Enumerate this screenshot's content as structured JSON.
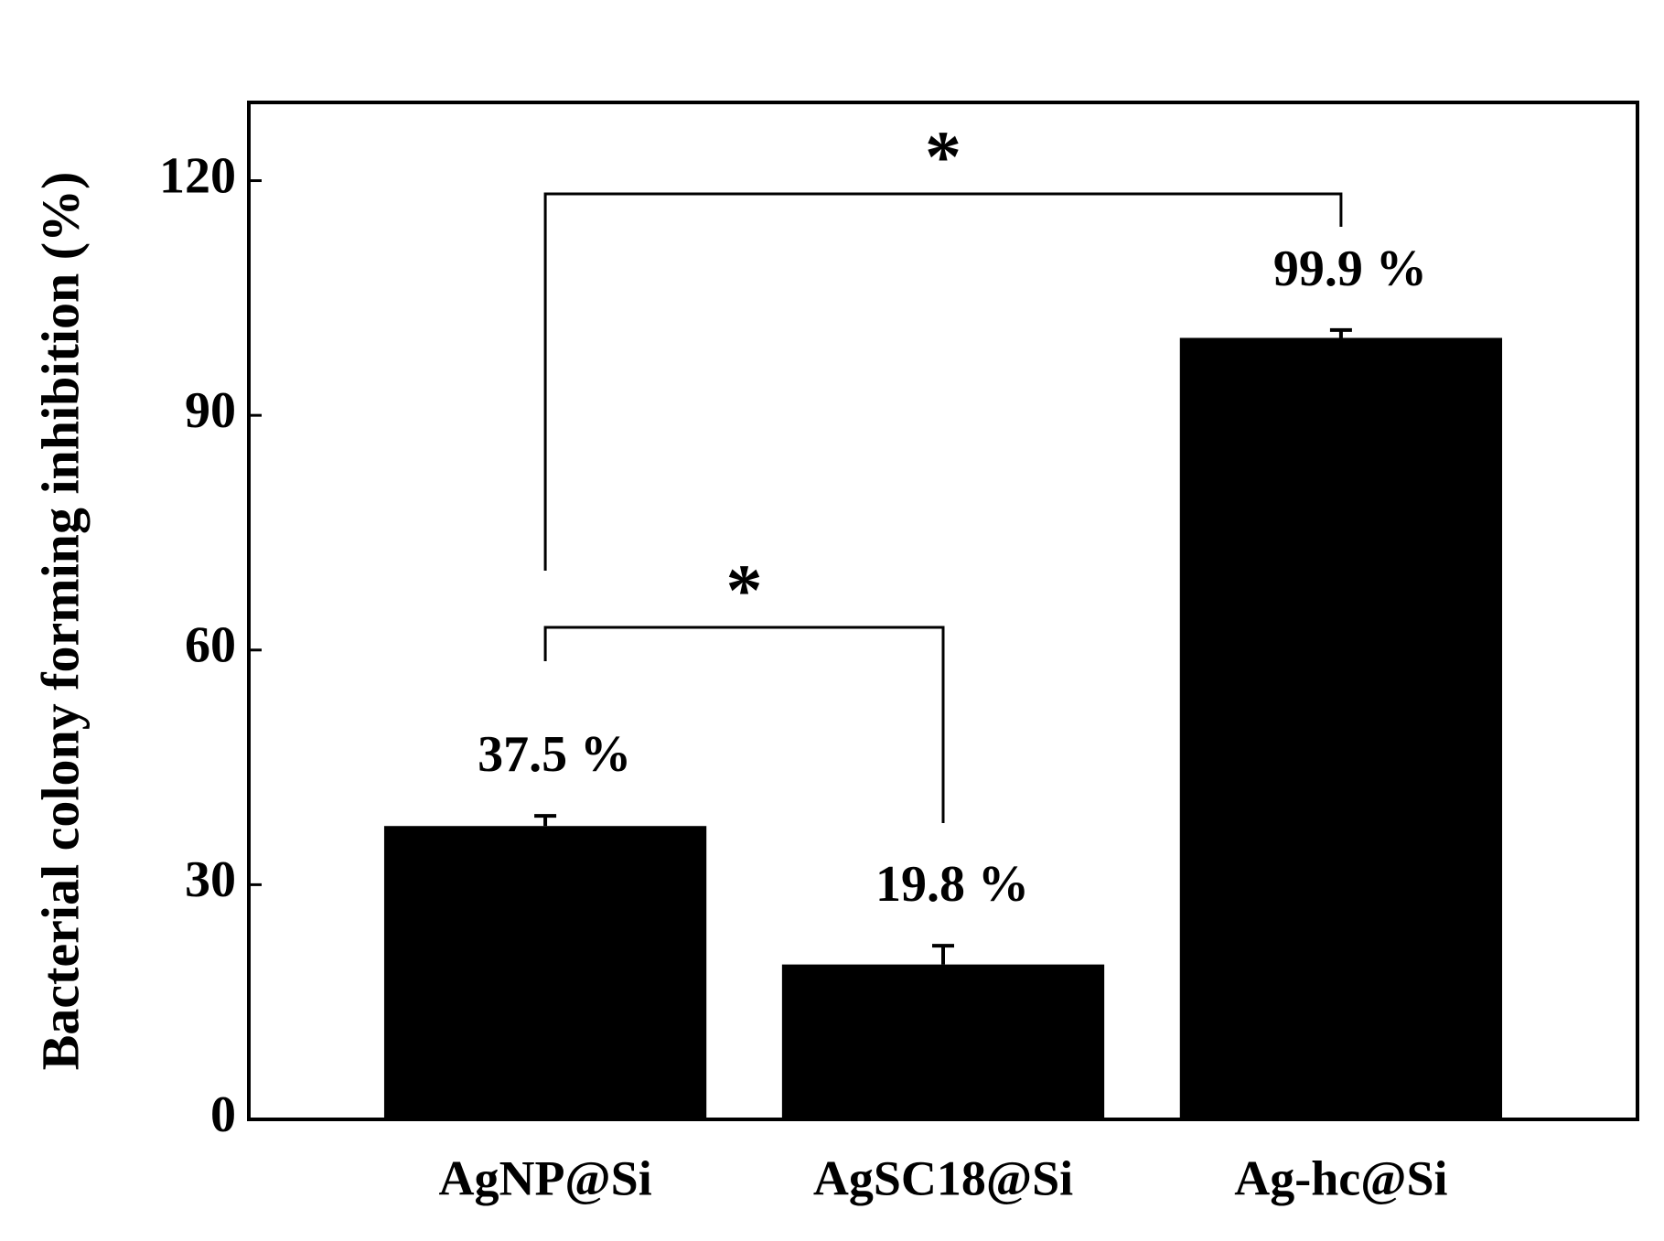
{
  "chart_data": {
    "type": "bar",
    "y_label": "Bacterial colony forming inhibition (%)",
    "categories": [
      "AgNP@Si",
      "AgSC18@Si",
      "Ag-hc@Si"
    ],
    "values": [
      37.5,
      19.8,
      99.9
    ],
    "value_labels": [
      "37.5 %",
      "19.8 %",
      "99.9 %"
    ],
    "errors": [
      1.3,
      2.4,
      1.0
    ],
    "color": "#000000",
    "ylim": [
      0,
      130
    ],
    "yticks": [
      0,
      30,
      60,
      90,
      120
    ],
    "annotations": [
      {
        "text": "*",
        "from": 0,
        "to": 2
      },
      {
        "text": "*",
        "from": 0,
        "to": 1
      }
    ]
  }
}
